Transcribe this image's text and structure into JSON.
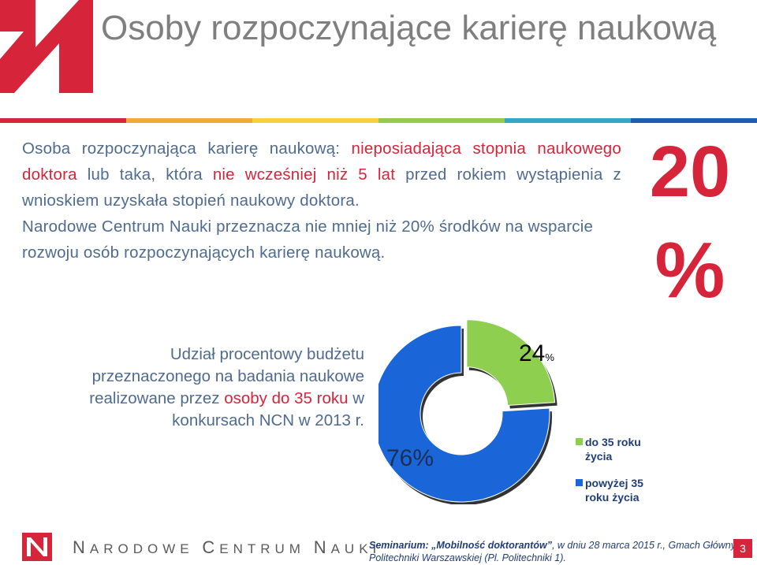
{
  "slide": {
    "title": "Osoby rozpoczynające karierę naukową"
  },
  "colors": {
    "accent": "#d6253b",
    "text_blue": "#4f6b8f",
    "band": [
      "#d6253b",
      "#f2a93b",
      "#f7d03a",
      "#94cb4c",
      "#34a7c9",
      "#1f5db0"
    ]
  },
  "intro": {
    "p1_a": "Osoba rozpoczynająca karierę naukową: ",
    "p1_b": "nieposiadająca stopnia naukowego doktora",
    "p1_c": " lub taka, która ",
    "p1_d": "nie wcześniej niż 5 lat",
    "p1_e": " przed rokiem wystąpienia z wnioskiem uzyskała stopień naukowy doktora.",
    "p2": "Narodowe Centrum Nauki przeznacza nie mniej niż 20% środków na wsparcie rozwoju osób rozpoczynających karierę naukową."
  },
  "big_percent": {
    "number": "20",
    "sign": "%"
  },
  "caption": {
    "a": "Udział procentowy budżetu przeznaczonego na badania naukowe realizowane przez ",
    "b": "osoby do 35 roku",
    "c": " w konkursach NCN w 2013 r."
  },
  "chart_data": {
    "type": "pie",
    "donut": true,
    "values": [
      24,
      76
    ],
    "labels": [
      "do 35 roku życia",
      "powyżej 35 roku życia"
    ],
    "value_labels": [
      "24",
      "76%"
    ],
    "value_label_suffix": "%",
    "colors": [
      "#8ecf4f",
      "#1a66d9"
    ],
    "legend_position": "right"
  },
  "footer": {
    "brand_n": "N",
    "brand_arodowe": "ARODOWE ",
    "brand_c": "C",
    "brand_entrum": "ENTRUM ",
    "brand_n2": "N",
    "brand_auki": "AUKI",
    "note_bold": "Seminarium: „Mobilność doktorantów”",
    "note_rest": ", w dniu 28 marca 2015 r., Gmach Główny Politechniki Warszawskiej (Pl. Politechniki 1).",
    "page": "3"
  }
}
